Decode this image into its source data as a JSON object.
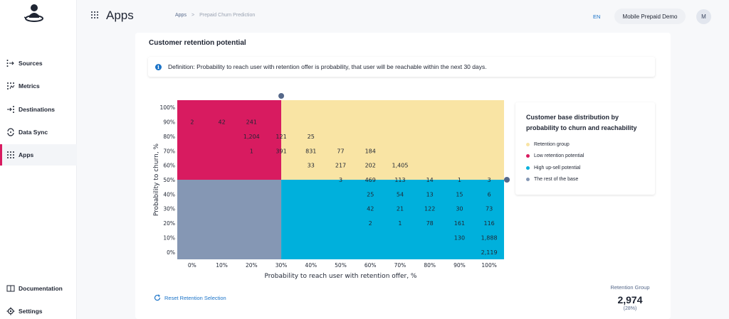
{
  "sidebar": {
    "items": [
      {
        "label": "Sources",
        "icon": "sources-icon"
      },
      {
        "label": "Metrics",
        "icon": "metrics-icon"
      },
      {
        "label": "Destinations",
        "icon": "destinations-icon"
      },
      {
        "label": "Data Sync",
        "icon": "data-sync-icon"
      },
      {
        "label": "Apps",
        "icon": "apps-icon",
        "active": true
      }
    ],
    "bottom_items": [
      {
        "label": "Documentation",
        "icon": "book-icon"
      },
      {
        "label": "Settings",
        "icon": "gear-icon"
      }
    ]
  },
  "header": {
    "title": "Apps",
    "breadcrumb": [
      "Apps",
      "Prepaid Churn Prediction"
    ],
    "breadcrumb_separator": ">",
    "language": "EN",
    "project": "Mobile Prepaid Demo",
    "avatar_initial": "M"
  },
  "card": {
    "title": "Customer retention potential",
    "definition": "Definition: Probability to reach user with retention offer is probability, that user will be reachable within the next 30 days."
  },
  "chart_data": {
    "type": "heatmap",
    "xlabel": "Probability to reach user with retention offer, %",
    "ylabel": "Probability to churn, %",
    "x_ticks": [
      "0%",
      "10%",
      "20%",
      "30%",
      "40%",
      "50%",
      "60%",
      "70%",
      "80%",
      "90%",
      "100%"
    ],
    "y_ticks": [
      "100%",
      "90%",
      "80%",
      "70%",
      "60%",
      "50%",
      "40%",
      "30%",
      "20%",
      "10%",
      "0%"
    ],
    "thresholds": {
      "reach": 35,
      "churn": 55
    },
    "region_colors": {
      "retention_group": "#f9e4a4",
      "low_retention": "#d81b60",
      "high_upsell": "#00b0dc",
      "rest": "#8597b4"
    },
    "cells": [
      {
        "x": "0%",
        "y": "90%",
        "value": "2"
      },
      {
        "x": "10%",
        "y": "90%",
        "value": "42"
      },
      {
        "x": "20%",
        "y": "90%",
        "value": "241"
      },
      {
        "x": "20%",
        "y": "80%",
        "value": "1,204"
      },
      {
        "x": "30%",
        "y": "80%",
        "value": "121"
      },
      {
        "x": "40%",
        "y": "80%",
        "value": "25"
      },
      {
        "x": "20%",
        "y": "70%",
        "value": "1"
      },
      {
        "x": "30%",
        "y": "70%",
        "value": "391"
      },
      {
        "x": "40%",
        "y": "70%",
        "value": "831"
      },
      {
        "x": "50%",
        "y": "70%",
        "value": "77"
      },
      {
        "x": "60%",
        "y": "70%",
        "value": "184"
      },
      {
        "x": "40%",
        "y": "60%",
        "value": "33"
      },
      {
        "x": "50%",
        "y": "60%",
        "value": "217"
      },
      {
        "x": "60%",
        "y": "60%",
        "value": "202"
      },
      {
        "x": "70%",
        "y": "60%",
        "value": "1,405"
      },
      {
        "x": "50%",
        "y": "50%",
        "value": "3"
      },
      {
        "x": "60%",
        "y": "50%",
        "value": "469"
      },
      {
        "x": "70%",
        "y": "50%",
        "value": "113"
      },
      {
        "x": "80%",
        "y": "50%",
        "value": "14"
      },
      {
        "x": "90%",
        "y": "50%",
        "value": "1"
      },
      {
        "x": "100%",
        "y": "50%",
        "value": "3"
      },
      {
        "x": "60%",
        "y": "40%",
        "value": "25"
      },
      {
        "x": "70%",
        "y": "40%",
        "value": "54"
      },
      {
        "x": "80%",
        "y": "40%",
        "value": "13"
      },
      {
        "x": "90%",
        "y": "40%",
        "value": "15"
      },
      {
        "x": "100%",
        "y": "40%",
        "value": "6"
      },
      {
        "x": "60%",
        "y": "30%",
        "value": "42"
      },
      {
        "x": "70%",
        "y": "30%",
        "value": "21"
      },
      {
        "x": "80%",
        "y": "30%",
        "value": "122"
      },
      {
        "x": "90%",
        "y": "30%",
        "value": "30"
      },
      {
        "x": "100%",
        "y": "30%",
        "value": "73"
      },
      {
        "x": "60%",
        "y": "20%",
        "value": "2"
      },
      {
        "x": "70%",
        "y": "20%",
        "value": "1"
      },
      {
        "x": "80%",
        "y": "20%",
        "value": "78"
      },
      {
        "x": "90%",
        "y": "20%",
        "value": "161"
      },
      {
        "x": "100%",
        "y": "20%",
        "value": "116"
      },
      {
        "x": "90%",
        "y": "10%",
        "value": "130"
      },
      {
        "x": "100%",
        "y": "10%",
        "value": "1,888"
      },
      {
        "x": "100%",
        "y": "0%",
        "value": "2,119"
      }
    ]
  },
  "legend": {
    "title": "Customer base distribution by probability to churn and reachability",
    "items": [
      {
        "label": "Retention group",
        "color": "#f9e4a4"
      },
      {
        "label": "Low retention potential",
        "color": "#d81b60"
      },
      {
        "label": "High up-sell potential",
        "color": "#00b0dc"
      },
      {
        "label": "The rest of the base",
        "color": "#8597b4"
      }
    ]
  },
  "reset_label": "Reset Retention Selection",
  "stat": {
    "label": "Retention Group",
    "value": "2,974",
    "percent": "(28%)"
  }
}
